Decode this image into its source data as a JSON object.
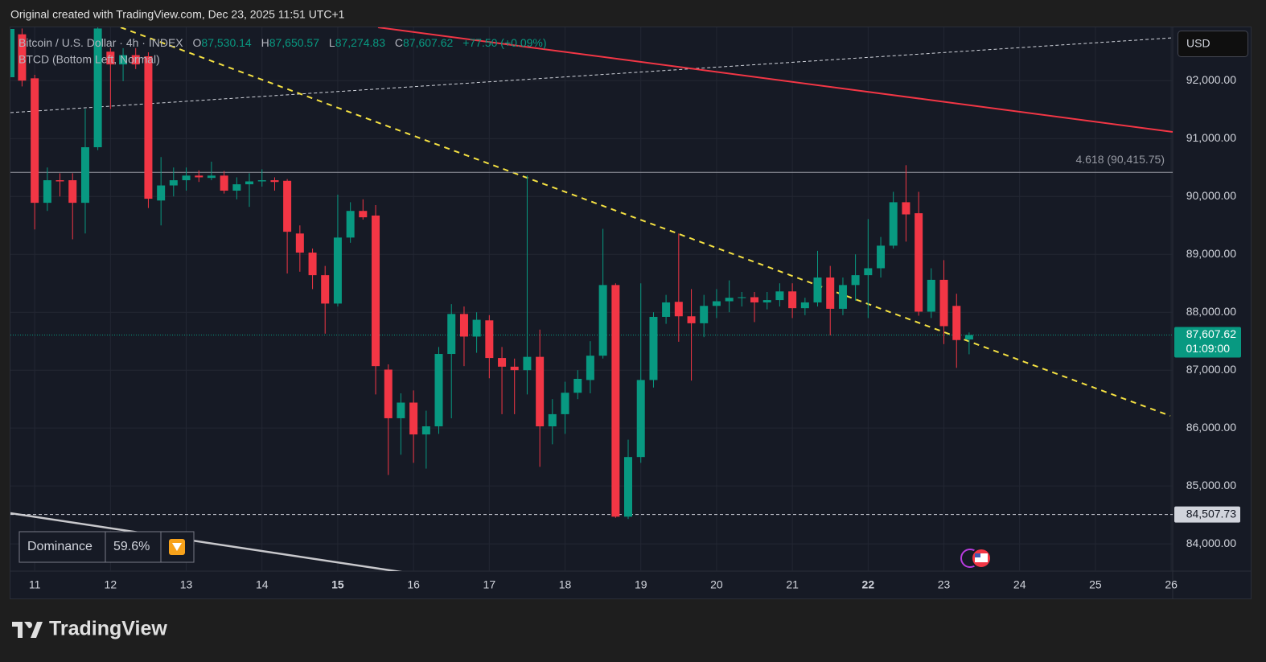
{
  "header": "Original created with TradingView.com, Dec 23, 2025 11:51 UTC+1",
  "chart_data": {
    "type": "candlestick",
    "title": "Bitcoin / U.S. Dollar · 4h · INDEX",
    "legend": {
      "o_label": "O",
      "o": "87,530.14",
      "h_label": "H",
      "h": "87,650.57",
      "l_label": "L",
      "l": "87,274.83",
      "c_label": "C",
      "c": "87,607.62",
      "change": "+77.50 (+0.09%)"
    },
    "indicator": "BTCD (Bottom Left, Normal)",
    "currency": "USD",
    "up_color": "#089981",
    "down_color": "#f23645",
    "x": [
      10.833,
      11,
      11.167,
      11.333,
      11.5,
      11.667,
      11.833,
      12,
      12.167,
      12.333,
      12.5,
      12.667,
      12.833,
      13,
      13.167,
      13.333,
      13.5,
      13.667,
      13.833,
      14,
      14.167,
      14.333,
      14.5,
      14.667,
      14.833,
      15,
      15.167,
      15.333,
      15.5,
      15.667,
      15.833,
      16,
      16.167,
      16.333,
      16.5,
      16.667,
      16.833,
      17,
      17.167,
      17.333,
      17.5,
      17.667,
      17.833,
      18,
      18.167,
      18.333,
      18.5,
      18.667,
      18.833,
      19,
      19.167,
      19.333,
      19.5,
      19.667,
      19.833,
      20,
      20.167,
      20.333,
      20.5,
      20.667,
      20.833,
      21,
      21.167,
      21.333,
      21.5,
      21.667,
      21.833,
      22,
      22.167,
      22.333,
      22.5,
      22.667,
      22.833,
      23,
      23.167,
      23.333
    ],
    "open": [
      92800,
      92040,
      89890,
      90280,
      90280,
      89890,
      90850,
      92500,
      92280,
      92440,
      92420,
      89930,
      90190,
      90280,
      90360,
      90320,
      90360,
      90100,
      90210,
      90260,
      90280,
      90270,
      89360,
      89030,
      88640,
      88150,
      89290,
      89750,
      89670,
      87010,
      86170,
      86440,
      85890,
      86030,
      87280,
      87970,
      87580,
      87860,
      87210,
      87060,
      87000,
      87230,
      86030,
      86240,
      86610,
      86830,
      87250,
      88470,
      84470,
      85500,
      86830,
      87920,
      88180,
      87930,
      87810,
      88110,
      88190,
      88250,
      88260,
      88170,
      88210,
      88360,
      88070,
      88170,
      88600,
      88060,
      88470,
      88640,
      88760,
      89150,
      89900,
      89710,
      88010,
      88560,
      88110,
      87530.14
    ],
    "high": [
      92900,
      92100,
      90500,
      90400,
      90400,
      91510,
      92950,
      92560,
      92560,
      92560,
      92490,
      90680,
      90500,
      90500,
      90450,
      90600,
      90440,
      90330,
      90400,
      90470,
      90330,
      90300,
      89500,
      89100,
      88800,
      90030,
      89900,
      89950,
      89850,
      87100,
      86600,
      86650,
      86300,
      87400,
      88140,
      88100,
      88000,
      87950,
      87400,
      87200,
      90360,
      87700,
      86500,
      86800,
      87000,
      87500,
      89440,
      88500,
      85800,
      88500,
      88000,
      88300,
      89360,
      88400,
      88300,
      88400,
      88550,
      88350,
      88350,
      88350,
      88500,
      88500,
      88250,
      89060,
      88800,
      88600,
      89000,
      89610,
      89300,
      90080,
      90540,
      90080,
      88760,
      88900,
      88320,
      87650.57
    ],
    "low": [
      91900,
      89430,
      89750,
      90000,
      89260,
      89360,
      90800,
      91510,
      91990,
      92200,
      89800,
      89500,
      90000,
      90100,
      90250,
      90280,
      90050,
      89950,
      89820,
      90170,
      90100,
      88670,
      88700,
      88400,
      87630,
      88100,
      89200,
      89600,
      86580,
      85190,
      85540,
      85400,
      85300,
      85900,
      86170,
      87070,
      87300,
      86860,
      86240,
      86240,
      86580,
      85330,
      85720,
      85900,
      86500,
      86600,
      87200,
      84450,
      84430,
      85400,
      86700,
      87800,
      87490,
      86820,
      87570,
      87900,
      88000,
      88100,
      87830,
      88050,
      88100,
      87900,
      87950,
      88100,
      87600,
      87950,
      88200,
      87900,
      88600,
      89100,
      89220,
      87940,
      87900,
      87450,
      87040,
      87274.83
    ],
    "close": [
      92000,
      89890,
      90280,
      90260,
      89890,
      90850,
      92900,
      92280,
      92440,
      92280,
      89960,
      90190,
      90280,
      90360,
      90330,
      90360,
      90100,
      90210,
      90260,
      90280,
      90250,
      89390,
      89030,
      88640,
      88150,
      89290,
      89750,
      89640,
      87070,
      86170,
      86440,
      85890,
      86030,
      87280,
      87970,
      87580,
      87870,
      87210,
      87060,
      87000,
      87230,
      86030,
      86240,
      86610,
      86850,
      87250,
      88470,
      84470,
      85500,
      86830,
      87920,
      88170,
      87930,
      87810,
      88110,
      88190,
      88250,
      88260,
      88170,
      88210,
      88360,
      88070,
      88170,
      88600,
      88060,
      88470,
      88640,
      88760,
      89150,
      89900,
      89690,
      88010,
      88560,
      87760,
      87520,
      87607.62
    ],
    "xlim": [
      10.68,
      26.02
    ],
    "xticks": [
      11,
      12,
      13,
      14,
      15,
      16,
      17,
      18,
      19,
      20,
      21,
      22,
      23,
      24,
      25,
      26
    ],
    "major_xticks": [
      15,
      22
    ],
    "ylim": [
      83530,
      92920
    ],
    "yticks": [
      {
        "value": 84000,
        "label": "84,000.00"
      },
      {
        "value": 85000,
        "label": "85,000.00"
      },
      {
        "value": 86000,
        "label": "86,000.00"
      },
      {
        "value": 87000,
        "label": "87,000.00"
      },
      {
        "value": 88000,
        "label": "88,000.00"
      },
      {
        "value": 89000,
        "label": "89,000.00"
      },
      {
        "value": 90000,
        "label": "90,000.00"
      },
      {
        "value": 91000,
        "label": "91,000.00"
      },
      {
        "value": 92000,
        "label": "92,000.00"
      }
    ],
    "grid": true,
    "last_price": {
      "value": 87607.62,
      "label": "87,607.62"
    },
    "countdown": "01:09:00",
    "levels": [
      {
        "value": 84507.73,
        "label": "84,507.73"
      },
      {
        "value": 90415.75,
        "label": "4.618 (90,415.75)"
      }
    ],
    "dominance": {
      "label": "Dominance",
      "value": "59.6%"
    }
  },
  "brand": "TradingView"
}
